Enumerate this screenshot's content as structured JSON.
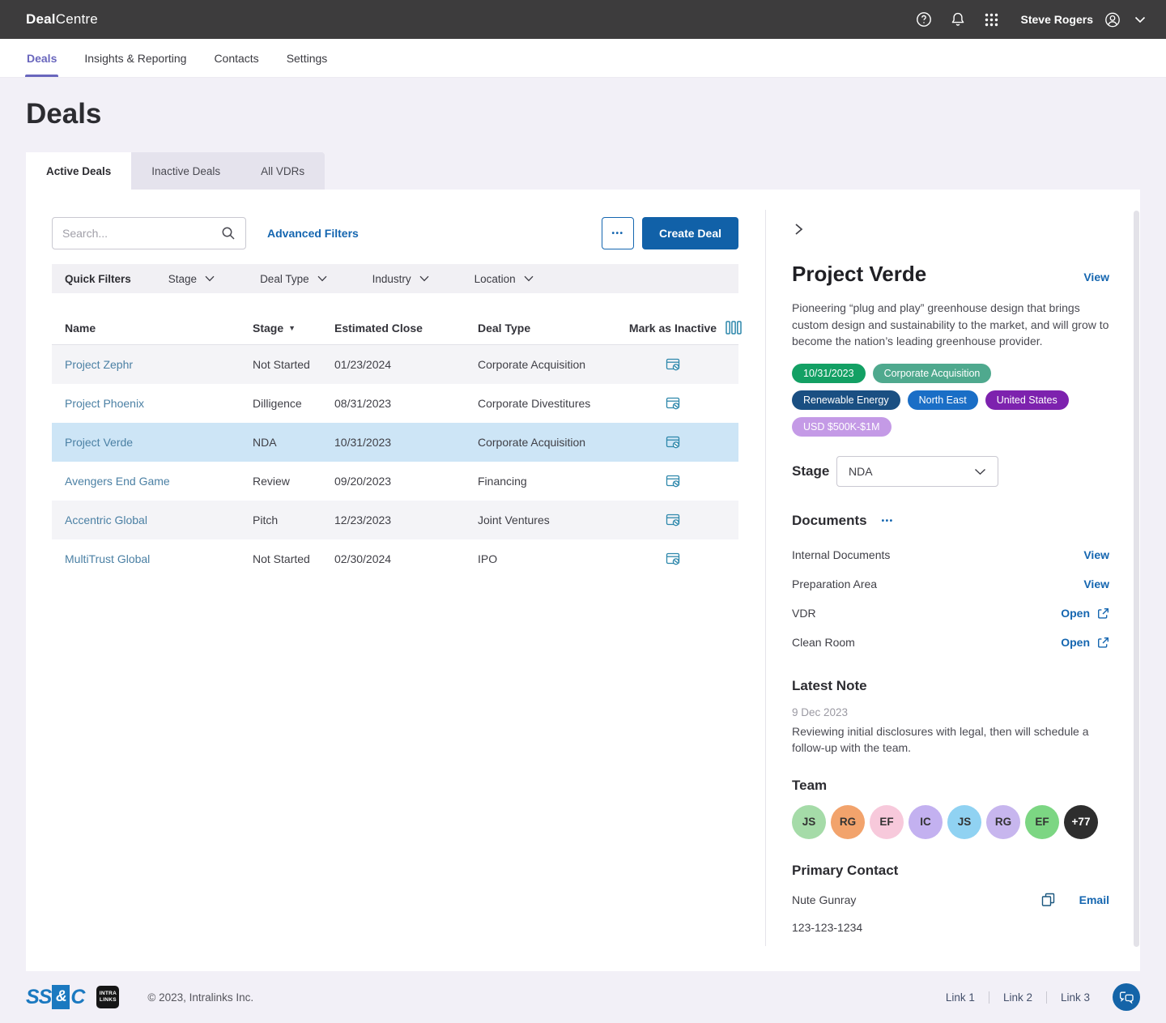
{
  "brand": {
    "bold": "Deal",
    "rest": "Centre"
  },
  "topbar": {
    "user_name": "Steve Rogers"
  },
  "nav_tabs": [
    {
      "label": "Deals",
      "active": true
    },
    {
      "label": "Insights & Reporting",
      "active": false
    },
    {
      "label": "Contacts",
      "active": false
    },
    {
      "label": "Settings",
      "active": false
    }
  ],
  "page_title": "Deals",
  "view_tabs": [
    {
      "label": "Active Deals",
      "active": true
    },
    {
      "label": "Inactive Deals",
      "active": false
    },
    {
      "label": "All VDRs",
      "active": false
    }
  ],
  "toolbar": {
    "search_placeholder": "Search...",
    "advanced_filters_label": "Advanced Filters",
    "more_label": "•••",
    "create_deal_label": "Create Deal"
  },
  "quick_filters": {
    "label": "Quick Filters",
    "items": [
      "Stage",
      "Deal Type",
      "Industry",
      "Location"
    ]
  },
  "table": {
    "columns": [
      "Name",
      "Stage",
      "Estimated Close",
      "Deal Type",
      "Mark as Inactive"
    ],
    "sorted_column": "Stage",
    "sort_direction": "desc",
    "rows": [
      {
        "name": "Project Zephr",
        "stage": "Not Started",
        "estimated_close": "01/23/2024",
        "deal_type": "Corporate Acquisition",
        "selected": false
      },
      {
        "name": "Project Phoenix",
        "stage": "Dilligence",
        "estimated_close": "08/31/2023",
        "deal_type": "Corporate Divestitures",
        "selected": false
      },
      {
        "name": "Project Verde",
        "stage": "NDA",
        "estimated_close": "10/31/2023",
        "deal_type": "Corporate Acquisition",
        "selected": true
      },
      {
        "name": "Avengers End Game",
        "stage": "Review",
        "estimated_close": "09/20/2023",
        "deal_type": "Financing",
        "selected": false
      },
      {
        "name": "Accentric Global",
        "stage": "Pitch",
        "estimated_close": "12/23/2023",
        "deal_type": "Joint Ventures",
        "selected": false
      },
      {
        "name": "MultiTrust Global",
        "stage": "Not Started",
        "estimated_close": "02/30/2024",
        "deal_type": "IPO",
        "selected": false
      }
    ]
  },
  "detail_panel": {
    "title": "Project Verde",
    "view_label": "View",
    "description": "Pioneering “plug and play” greenhouse design that brings custom design and sustainability to the market, and will grow to become the nation’s leading greenhouse provider.",
    "badges": [
      {
        "label": "10/31/2023",
        "color": "#13a064"
      },
      {
        "label": "Corporate Acquisition",
        "color": "#4fa98e"
      },
      {
        "label": "Renewable Energy",
        "color": "#1a4f82"
      },
      {
        "label": "North East",
        "color": "#1a6ec6"
      },
      {
        "label": "United States",
        "color": "#7d22ae"
      },
      {
        "label": "USD $500K-$1M",
        "color": "#c49ae6"
      }
    ],
    "stage": {
      "label": "Stage",
      "value": "NDA"
    },
    "documents": {
      "title": "Documents",
      "more_label": "•••",
      "items": [
        {
          "label": "Internal Documents",
          "action": "View",
          "external": false
        },
        {
          "label": "Preparation Area",
          "action": "View",
          "external": false
        },
        {
          "label": "VDR",
          "action": "Open",
          "external": true
        },
        {
          "label": "Clean Room",
          "action": "Open",
          "external": true
        }
      ]
    },
    "latest_note": {
      "title": "Latest Note",
      "date": "9 Dec 2023",
      "text": "Reviewing initial disclosures with legal, then will schedule a follow-up with the team."
    },
    "team": {
      "title": "Team",
      "avatars": [
        {
          "initials": "JS",
          "bg": "#a5dba8",
          "fg": "#333333"
        },
        {
          "initials": "RG",
          "bg": "#f2a36c",
          "fg": "#333333"
        },
        {
          "initials": "EF",
          "bg": "#f7c9db",
          "fg": "#333333"
        },
        {
          "initials": "IC",
          "bg": "#c3b1f0",
          "fg": "#333333"
        },
        {
          "initials": "JS",
          "bg": "#90d2f2",
          "fg": "#333333"
        },
        {
          "initials": "RG",
          "bg": "#c7b6ee",
          "fg": "#333333"
        },
        {
          "initials": "EF",
          "bg": "#7cd683",
          "fg": "#333333"
        },
        {
          "initials": "+77",
          "bg": "#2e2e2e",
          "fg": "#ffffff"
        }
      ]
    },
    "primary_contact": {
      "title": "Primary Contact",
      "name": "Nute Gunray",
      "email_label": "Email",
      "phone": "123-123-1234"
    }
  },
  "footer": {
    "logo_ssc": {
      "part1": "SS",
      "amp": "&",
      "part2": "C"
    },
    "logo_intralinks": "INTRA LINKS",
    "copyright": "© 2023, Intralinks Inc.",
    "links": [
      "Link 1",
      "Link 2",
      "Link 3"
    ]
  },
  "colors": {
    "accent_blue": "#1161a8",
    "link_blue": "#1566b0",
    "active_purple": "#6966bd",
    "table_link_blue": "#4b80a4",
    "selected_row": "#cde5f6",
    "icon_teal": "#2d87ab",
    "topbar_bg": "#3d3c3d",
    "page_bg": "#f2f0f7"
  }
}
